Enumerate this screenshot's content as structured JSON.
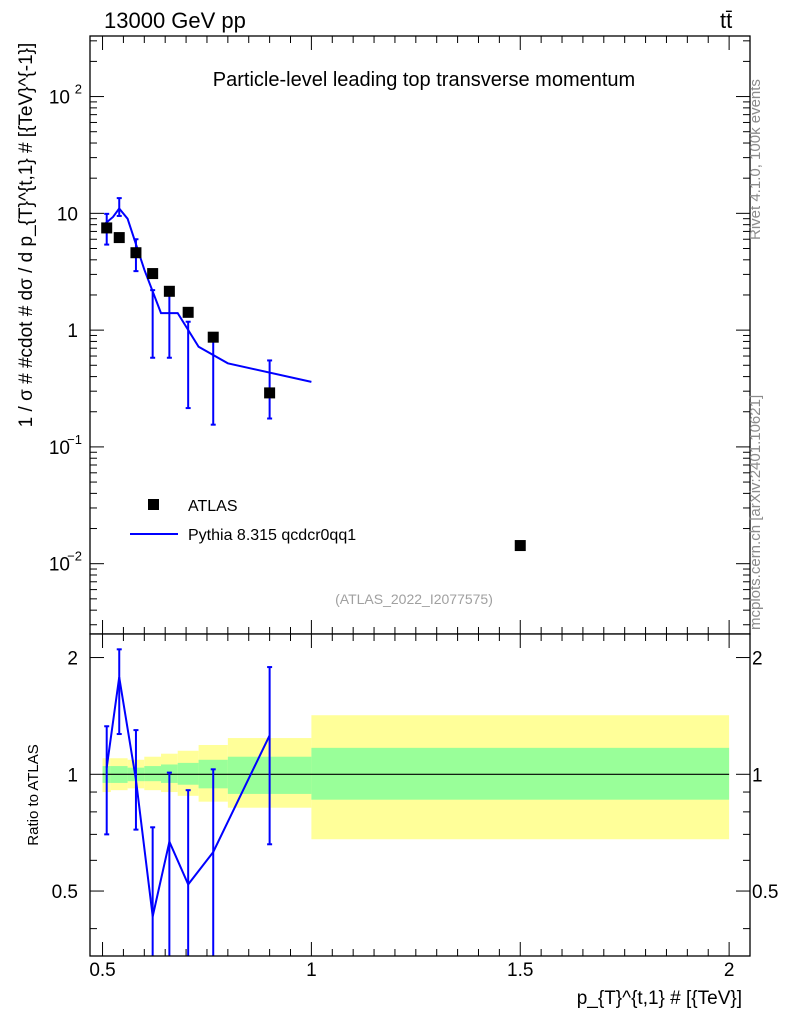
{
  "header": {
    "left": "13000 GeV pp",
    "right": "tt̄"
  },
  "side_text": {
    "rivet": "Rivet 4.1.0,  100k events",
    "source": "mcplots.cern.ch [arXiv:2401.10621]"
  },
  "chart_data": [
    {
      "type": "scatter",
      "panel": "main",
      "title": "Particle-level leading top transverse momentum",
      "analysis_tag": "(ATLAS_2022_I2077575)",
      "ylabel": "1 / σ # #cdot # dσ / d p_{T}^{t,1} # [{TeV}^{-1}]",
      "xlim": [
        0.47,
        2.05
      ],
      "ylim": [
        0.0025,
        330
      ],
      "yscale": "log",
      "ytick_labels": [
        "10^{-2}",
        "10^{-1}",
        "1",
        "10",
        "10^{2}"
      ],
      "legend": [
        "ATLAS",
        "Pythia 8.315 qcdcr0qq1"
      ],
      "series": [
        {
          "name": "ATLAS",
          "kind": "points",
          "color": "#000000",
          "x": [
            0.51,
            0.54,
            0.58,
            0.62,
            0.66,
            0.705,
            0.765,
            0.9,
            1.5
          ],
          "y": [
            7.5,
            6.2,
            4.6,
            3.05,
            2.15,
            1.42,
            0.87,
            0.29,
            0.0143
          ]
        },
        {
          "name": "Pythia 8.315 qcdcr0qq1",
          "kind": "histo-line",
          "color": "#0000ff",
          "x": [
            0.5,
            0.525,
            0.54,
            0.56,
            0.6,
            0.64,
            0.68,
            0.73,
            0.8,
            1.0
          ],
          "y": [
            7.8,
            9.3,
            11.0,
            9.0,
            3.3,
            1.4,
            1.4,
            0.72,
            0.52,
            0.36
          ],
          "err_x": [
            0.51,
            0.54,
            0.58,
            0.62,
            0.66,
            0.705,
            0.765,
            0.9
          ],
          "err_y": [
            7.8,
            11.0,
            4.4,
            1.4,
            1.4,
            0.72,
            0.52,
            0.36
          ],
          "err_lo": [
            5.4,
            9.5,
            3.2,
            0.58,
            0.58,
            0.215,
            0.155,
            0.175
          ],
          "err_hi": [
            9.9,
            13.5,
            6.0,
            2.2,
            2.2,
            1.18,
            0.88,
            0.55
          ]
        }
      ]
    },
    {
      "type": "line",
      "panel": "ratio",
      "ylabel": "Ratio to ATLAS",
      "xlabel": "p_{T}^{t,1} # [{TeV}]",
      "xlim": [
        0.47,
        2.05
      ],
      "ylim": [
        0.34,
        2.3
      ],
      "yscale": "log",
      "xtick_labels": [
        "0.5",
        "1",
        "1.5",
        "2"
      ],
      "ytick_labels": [
        "0.5",
        "1",
        "2"
      ],
      "reference": 1.0,
      "bands": {
        "edges": [
          0.5,
          0.52,
          0.56,
          0.6,
          0.64,
          0.68,
          0.73,
          0.8,
          1.0,
          2.0
        ],
        "inner_lo": [
          0.95,
          0.95,
          0.96,
          0.96,
          0.95,
          0.94,
          0.92,
          0.89,
          0.86
        ],
        "inner_hi": [
          1.05,
          1.05,
          1.04,
          1.05,
          1.06,
          1.07,
          1.09,
          1.11,
          1.17
        ],
        "outer_lo": [
          0.9,
          0.91,
          0.92,
          0.91,
          0.9,
          0.88,
          0.85,
          0.82,
          0.68
        ],
        "outer_hi": [
          1.1,
          1.1,
          1.09,
          1.11,
          1.13,
          1.15,
          1.19,
          1.24,
          1.42
        ]
      },
      "series": [
        {
          "name": "Pythia 8.315 qcdcr0qq1 / ATLAS",
          "color": "#0000ff",
          "x": [
            0.51,
            0.54,
            0.58,
            0.62,
            0.66,
            0.705,
            0.765,
            0.9
          ],
          "y": [
            1.04,
            1.78,
            0.97,
            0.43,
            0.67,
            0.52,
            0.63,
            1.26
          ],
          "err_lo": [
            0.7,
            1.27,
            0.72,
            0.3,
            0.29,
            0.24,
            0.3,
            0.66
          ],
          "err_hi": [
            1.33,
            2.1,
            1.3,
            0.73,
            1.01,
            0.91,
            1.03,
            1.89
          ]
        }
      ]
    }
  ]
}
